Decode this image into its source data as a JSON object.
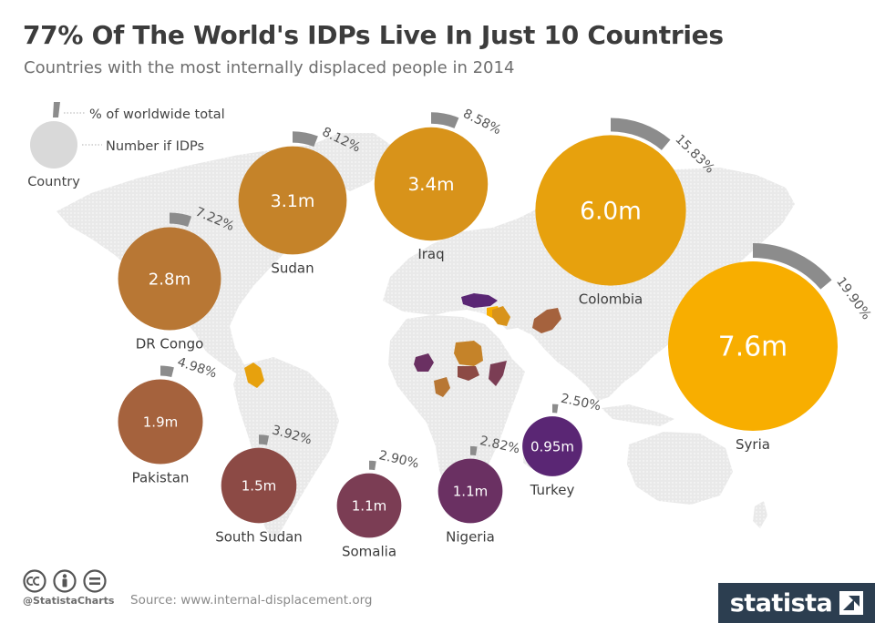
{
  "header": {
    "title": "77% Of The World's IDPs Live In Just 10 Countries",
    "subtitle": "Countries with the most internally displaced people in 2014"
  },
  "legend": {
    "share_label": "% of worldwide total",
    "count_label": "Number if IDPs",
    "country_label": "Country"
  },
  "chart_data": {
    "type": "bubble",
    "title": "77% Of The World's IDPs Live In Just 10 Countries",
    "subtitle": "Countries with the most internally displaced people in 2014",
    "size_units": "million IDPs",
    "series": [
      {
        "country": "Syria",
        "idps_label": "7.6m",
        "idps_millions": 7.6,
        "share_label": "19.90%",
        "share_pct": 19.9,
        "color": "#f8ae00"
      },
      {
        "country": "Colombia",
        "idps_label": "6.0m",
        "idps_millions": 6.0,
        "share_label": "15.83%",
        "share_pct": 15.83,
        "color": "#e7a10d"
      },
      {
        "country": "Iraq",
        "idps_label": "3.4m",
        "idps_millions": 3.4,
        "share_label": "8.58%",
        "share_pct": 8.58,
        "color": "#d8931a"
      },
      {
        "country": "Sudan",
        "idps_label": "3.1m",
        "idps_millions": 3.1,
        "share_label": "8.12%",
        "share_pct": 8.12,
        "color": "#c58329"
      },
      {
        "country": "DR Congo",
        "idps_label": "2.8m",
        "idps_millions": 2.8,
        "share_label": "7.22%",
        "share_pct": 7.22,
        "color": "#b87734"
      },
      {
        "country": "Pakistan",
        "idps_label": "1.9m",
        "idps_millions": 1.9,
        "share_label": "4.98%",
        "share_pct": 4.98,
        "color": "#a5623d"
      },
      {
        "country": "South Sudan",
        "idps_label": "1.5m",
        "idps_millions": 1.5,
        "share_label": "3.92%",
        "share_pct": 3.92,
        "color": "#8c4a45"
      },
      {
        "country": "Somalia",
        "idps_label": "1.1m",
        "idps_millions": 1.1,
        "share_label": "2.90%",
        "share_pct": 2.9,
        "color": "#7b3d54"
      },
      {
        "country": "Nigeria",
        "idps_label": "1.1m",
        "idps_millions": 1.1,
        "share_label": "2.82%",
        "share_pct": 2.82,
        "color": "#6a3062"
      },
      {
        "country": "Turkey",
        "idps_label": "0.95m",
        "idps_millions": 0.95,
        "share_label": "2.50%",
        "share_pct": 2.5,
        "color": "#5a2674"
      }
    ]
  },
  "colors": {
    "ring_track": "#8c8c8c",
    "map_land": "#e7e7e7",
    "legend_circle": "#d9d9d9",
    "brand_bg": "#2c3e50"
  },
  "footer": {
    "handle": "@StatistaCharts",
    "source": "Source: www.internal-displacement.org",
    "brand": "statista"
  }
}
